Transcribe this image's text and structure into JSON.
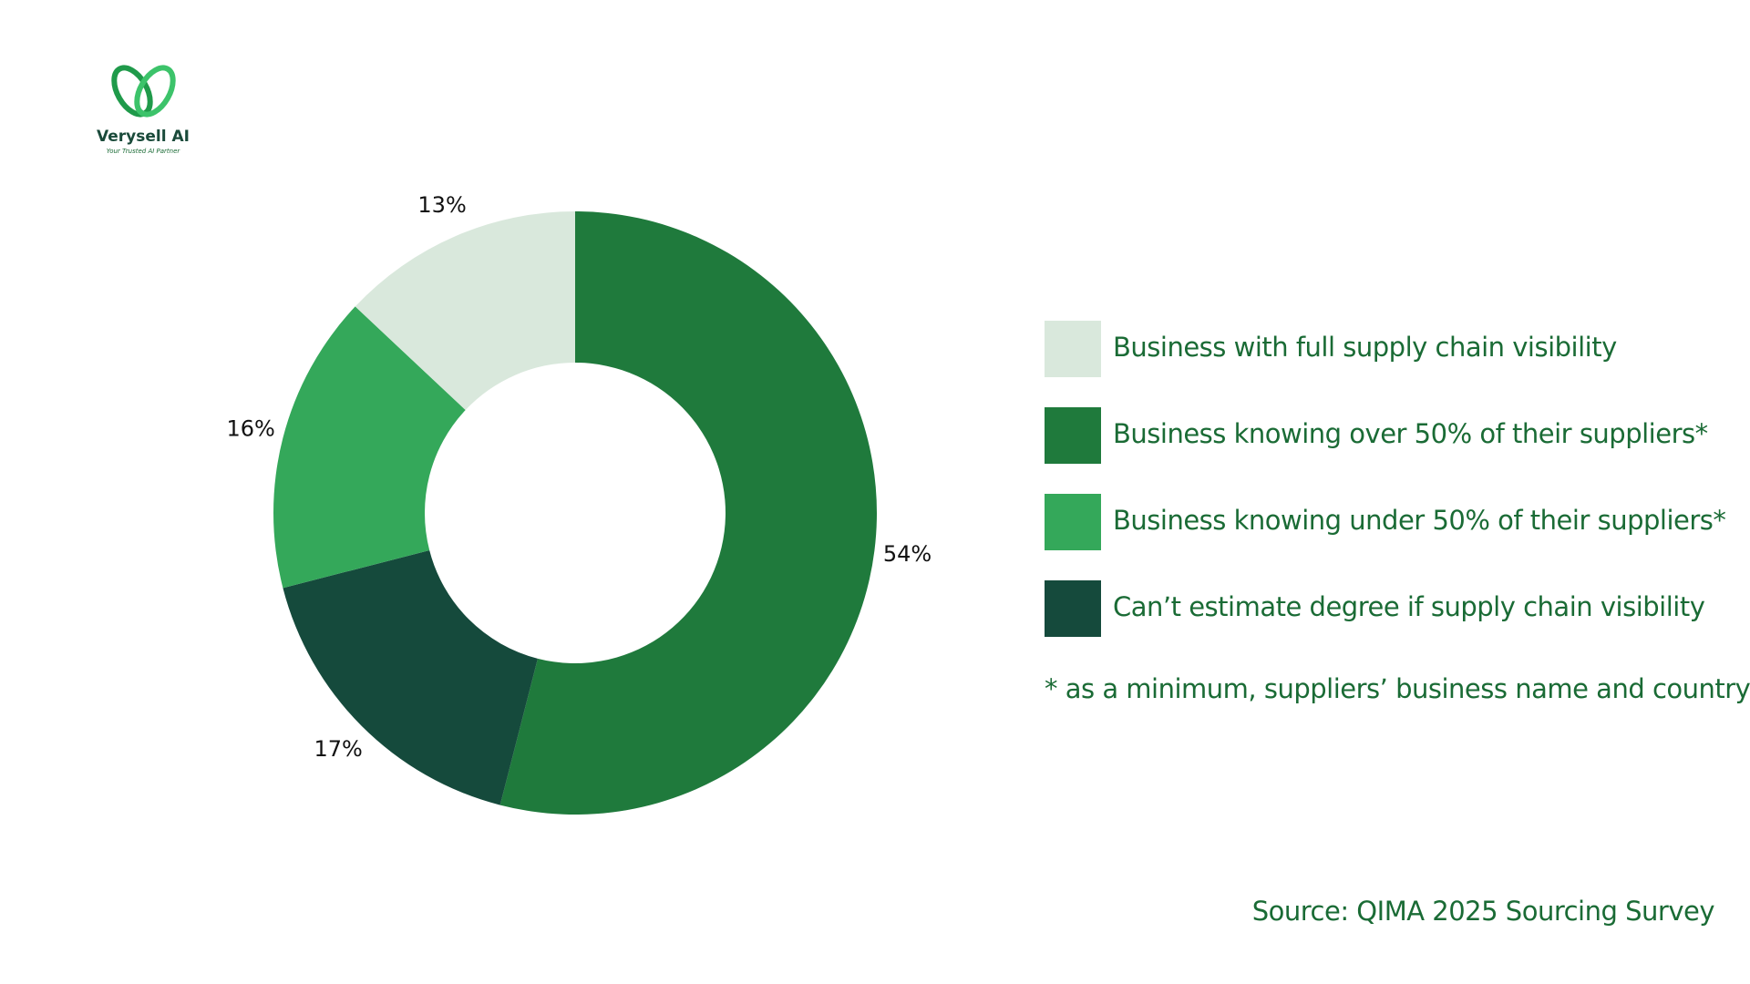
{
  "logo": {
    "name": "Verysell AI",
    "tagline": "Your Trusted AI Partner"
  },
  "chart_data": {
    "type": "donut",
    "categories": [
      "Business knowing over 50% of their suppliers*",
      "Can’t estimate degree if supply chain visibility",
      "Business knowing under 50% of their suppliers*",
      "Business with full supply chain visibility"
    ],
    "values": [
      54,
      17,
      16,
      13
    ],
    "value_labels": [
      "54%",
      "17%",
      "16%",
      "13%"
    ],
    "colors": [
      "#1f7a3c",
      "#154a3c",
      "#34a85a",
      "#d9e8dc"
    ],
    "footnote": "* as a minimum, suppliers’ business name and country",
    "source": "Source: QIMA 2025 Sourcing Survey"
  }
}
